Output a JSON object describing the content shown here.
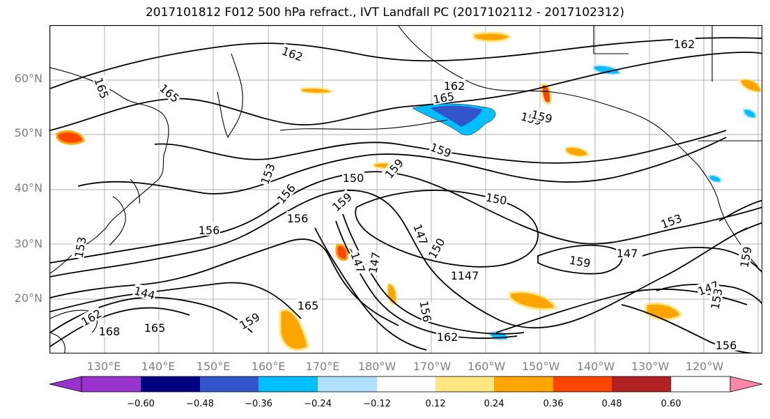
{
  "title": "2017101812 F012 500 hPa refract., IVT Landfall PC (2017102112 - 2017102312)",
  "map": {
    "lat_labels": [
      "60°N",
      "50°N",
      "40°N",
      "30°N",
      "20°N"
    ],
    "lon_labels": [
      "130°E",
      "140°E",
      "150°E",
      "160°E",
      "170°E",
      "180°W",
      "170°W",
      "160°W",
      "150°W",
      "140°W",
      "130°W",
      "120°W"
    ],
    "contour_labels": [
      "162",
      "165",
      "165",
      "159",
      "156",
      "153",
      "156",
      "159",
      "150",
      "147",
      "150",
      "153",
      "159",
      "147",
      "144",
      "162",
      "168",
      "165",
      "159",
      "165",
      "153",
      "147",
      "156",
      "162",
      "165",
      "159",
      "159",
      "153",
      "147",
      "147",
      "159",
      "156",
      "153",
      "162",
      "150",
      "156",
      "147",
      "162",
      "159"
    ],
    "contour_line_color": "#000000",
    "coastline_color": "#000000",
    "grid_color": "#b0b0b0"
  },
  "colorbar": {
    "colors": [
      "#9933cc",
      "#000080",
      "#3355cc",
      "#00bfff",
      "#b0e0ff",
      "#ffffff",
      "#ffe680",
      "#ffa500",
      "#ff4500",
      "#b22222",
      "#ff88aa"
    ],
    "tick_labels": [
      "−0.60",
      "−0.48",
      "−0.36",
      "−0.24",
      "−0.12",
      "0.12",
      "0.24",
      "0.36",
      "0.48",
      "0.60"
    ]
  }
}
